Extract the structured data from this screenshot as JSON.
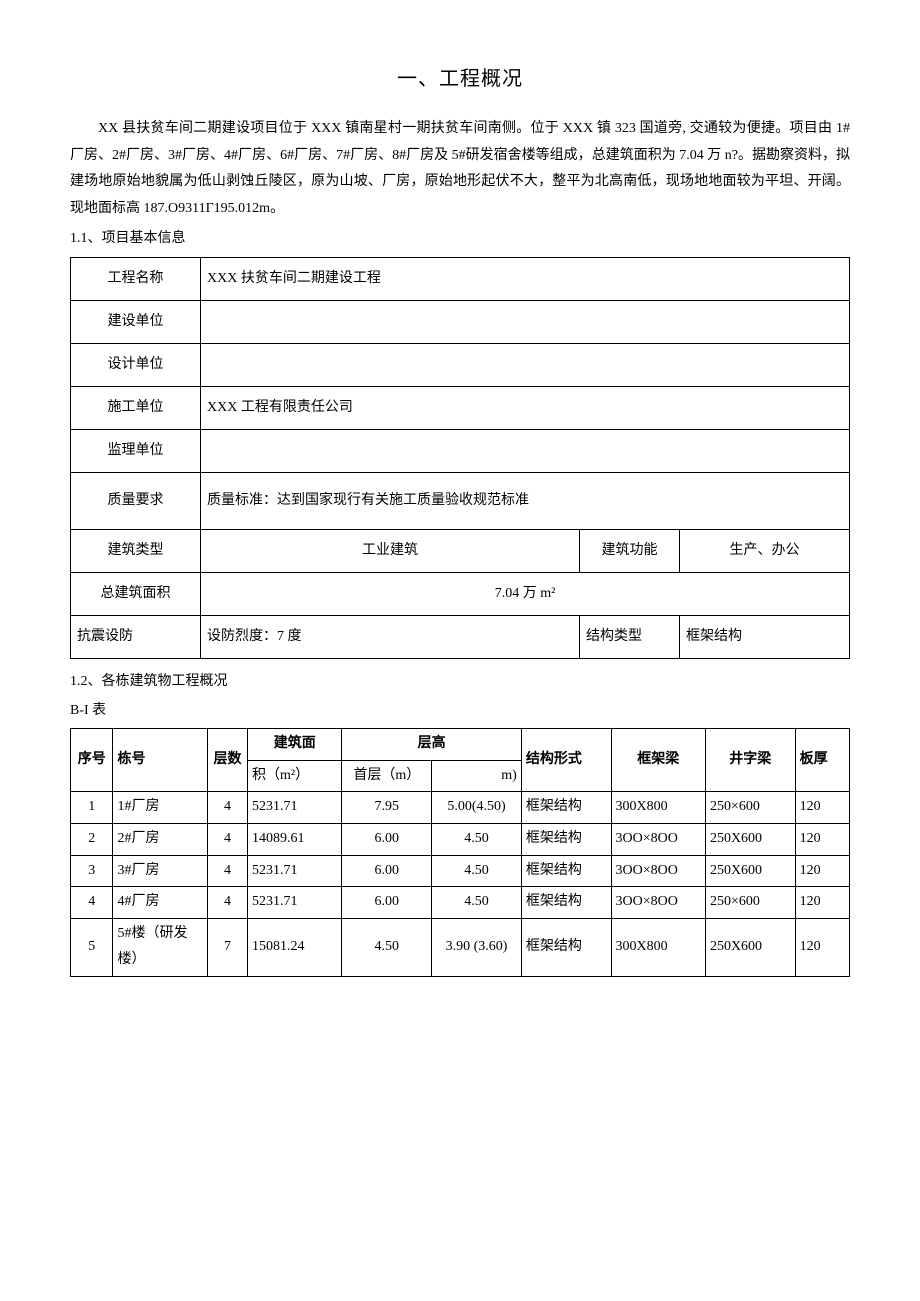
{
  "title": "一、工程概况",
  "intro": "XX 县扶贫车间二期建设项目位于 XXX 镇南星村一期扶贫车间南侧。位于 XXX 镇 323 国道旁, 交通较为便捷。项目由 1#厂房、2#厂房、3#厂房、4#厂房、6#厂房、7#厂房、8#厂房及 5#研发宿舍楼等组成，总建筑面积为 7.04 万 n?。据勘察资料，拟建场地原始地貌属为低山剥蚀丘陵区，原为山坡、厂房，原始地形起伏不大，整平为北高南低，现场地地面较为平坦、开阔。现地面标高 187.O9311Γ195.012m。",
  "sec11": "1.1、项目基本信息",
  "info": {
    "project_name_lbl": "工程名称",
    "project_name_val": "XXX 扶贫车间二期建设工程",
    "owner_lbl": "建设单位",
    "owner_val": "",
    "designer_lbl": "设计单位",
    "designer_val": "",
    "contractor_lbl": "施工单位",
    "contractor_val": "XXX 工程有限责任公司",
    "supervisor_lbl": "监理单位",
    "supervisor_val": "",
    "quality_lbl": "质量要求",
    "quality_val": "质量标准：达到国家现行有关施工质量验收规范标准",
    "btype_lbl": "建筑类型",
    "btype_val": "工业建筑",
    "bfunc_lbl": "建筑功能",
    "bfunc_val": "生产、办公",
    "area_lbl": "总建筑面积",
    "area_val": "7.04 万 m²",
    "seismic_lbl": "抗震设防",
    "seismic_val": "设防烈度：7 度",
    "struct_lbl": "结构类型",
    "struct_val": "框架结构"
  },
  "sec12": "1.2、各栋建筑物工程概况",
  "tbl_label": "B-I 表",
  "bhead": {
    "seq": "序号",
    "bno": "栋号",
    "floors": "层数",
    "area": "建筑面",
    "area_unit": "积（m²）",
    "height": "层高",
    "h1": "首层（m）",
    "h2": "m)",
    "struct": "结构形式",
    "beam1": "框架梁",
    "beam2": "井字梁",
    "slab": "板厚"
  },
  "brows": [
    {
      "seq": "1",
      "bno": "1#厂房",
      "floors": "4",
      "area": "5231.71",
      "h1": "7.95",
      "h2": "5.00(4.50)",
      "struct": "框架结构",
      "b1": "300X800",
      "b2": "250×600",
      "slab": "120"
    },
    {
      "seq": "2",
      "bno": "2#厂房",
      "floors": "4",
      "area": "14089.61",
      "h1": "6.00",
      "h2": "4.50",
      "struct": "框架结构",
      "b1": "3OO×8OO",
      "b2": "250X600",
      "slab": "120"
    },
    {
      "seq": "3",
      "bno": "3#厂房",
      "floors": "4",
      "area": "5231.71",
      "h1": "6.00",
      "h2": "4.50",
      "struct": "框架结构",
      "b1": "3OO×8OO",
      "b2": "250X600",
      "slab": "120"
    },
    {
      "seq": "4",
      "bno": "4#厂房",
      "floors": "4",
      "area": "5231.71",
      "h1": "6.00",
      "h2": "4.50",
      "struct": "框架结构",
      "b1": "3OO×8OO",
      "b2": "250×600",
      "slab": "120"
    },
    {
      "seq": "5",
      "bno": "5#楼（研发楼）",
      "floors": "7",
      "area": "15081.24",
      "h1": "4.50",
      "h2": "3.90 (3.60)",
      "struct": "框架结构",
      "b1": "300X800",
      "b2": "250X600",
      "slab": "120"
    }
  ]
}
